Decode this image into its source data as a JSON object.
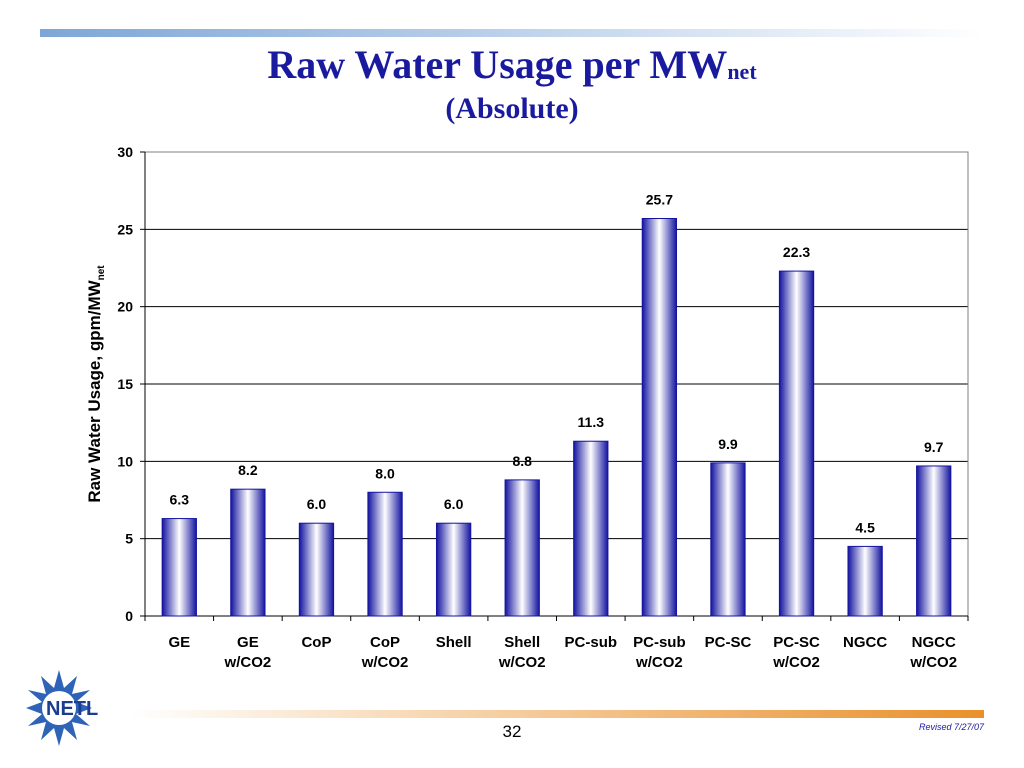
{
  "slide": {
    "title_main": "Raw Water Usage per MW",
    "title_sub": "net",
    "subtitle": "(Absolute)",
    "page_number": "32",
    "revised": "Revised 7/27/07",
    "logo_text": "NETL"
  },
  "colors": {
    "title": "#1a1a9e",
    "bar_edge": "#1414a0",
    "bar_center": "#ffffff",
    "grid": "#000000"
  },
  "chart_data": {
    "type": "bar",
    "ylabel_main": "Raw Water Usage, gpm/MW",
    "ylabel_sub": "net",
    "ylim": [
      0,
      30
    ],
    "yticks": [
      0,
      5,
      10,
      15,
      20,
      25,
      30
    ],
    "grid": true,
    "categories": [
      [
        "GE"
      ],
      [
        "GE",
        "w/CO2"
      ],
      [
        "CoP"
      ],
      [
        "CoP",
        "w/CO2"
      ],
      [
        "Shell"
      ],
      [
        "Shell",
        "w/CO2"
      ],
      [
        "PC-sub"
      ],
      [
        "PC-sub",
        "w/CO2"
      ],
      [
        "PC-SC"
      ],
      [
        "PC-SC",
        "w/CO2"
      ],
      [
        "NGCC"
      ],
      [
        "NGCC",
        "w/CO2"
      ]
    ],
    "values": [
      6.3,
      8.2,
      6.0,
      8.0,
      6.0,
      8.8,
      11.3,
      25.7,
      9.9,
      22.3,
      4.5,
      9.7
    ],
    "labels": [
      "6.3",
      "8.2",
      "6.0",
      "8.0",
      "6.0",
      "8.8",
      "11.3",
      "25.7",
      "9.9",
      "22.3",
      "4.5",
      "9.7"
    ]
  }
}
